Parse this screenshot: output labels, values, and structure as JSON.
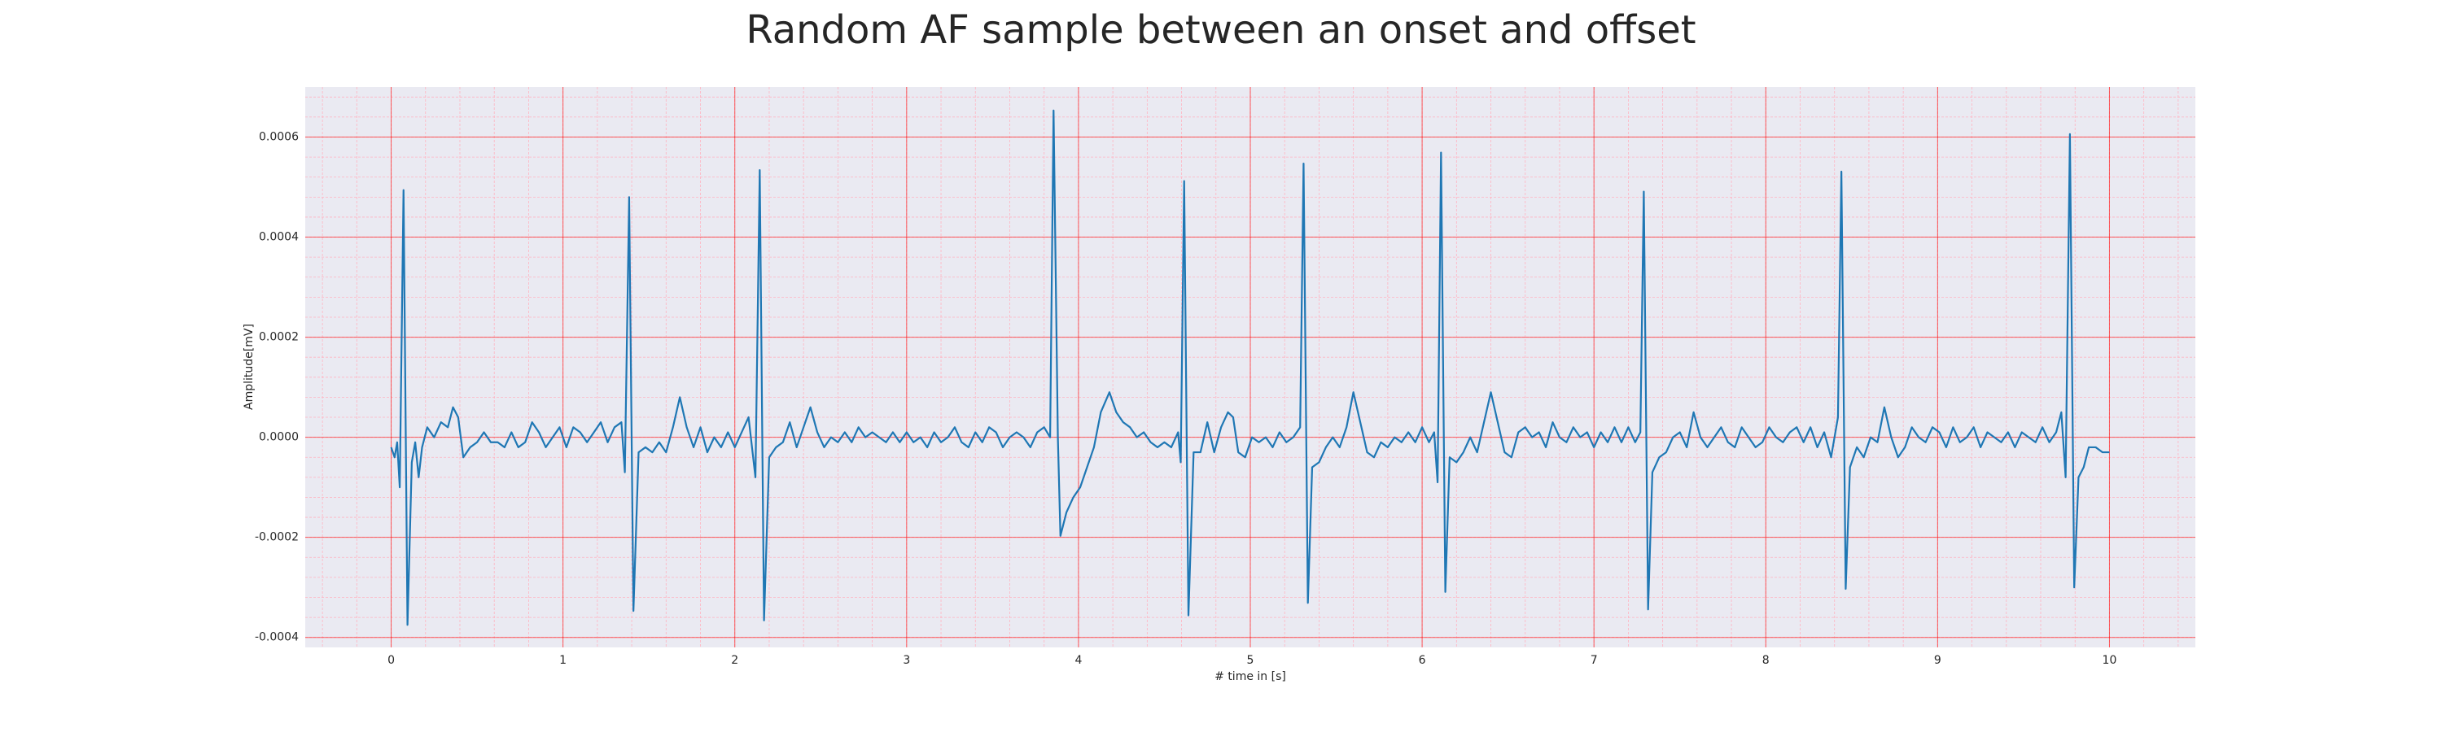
{
  "chart_data": {
    "type": "line",
    "title": "Random AF sample between an onset and offset",
    "x_label": "# time in [s]",
    "y_label": "Amplitude[mV]",
    "background": "#eaeaf2",
    "grid": true,
    "grid_color": "#ff0000",
    "minor_grid": {
      "x_step": 0.2,
      "y_step": 4e-05,
      "color": "#ffb3c1"
    },
    "xlim": [
      -0.5,
      10.5
    ],
    "ylim": [
      -0.00042,
      0.0007
    ],
    "xticks": [
      0,
      1,
      2,
      3,
      4,
      5,
      6,
      7,
      8,
      9,
      10
    ],
    "yticks": [
      {
        "value": -0.0004,
        "label": "-0.0004"
      },
      {
        "value": -0.0002,
        "label": "-0.0002"
      },
      {
        "value": 0,
        "label": "0.0000"
      },
      {
        "value": 0.0002,
        "label": "0.0002"
      },
      {
        "value": 0.0004,
        "label": "0.0004"
      },
      {
        "value": 0.0006,
        "label": "0.0006"
      }
    ],
    "x": [
      0.0,
      0.02,
      0.035,
      0.05,
      0.072,
      0.095,
      0.12,
      0.14,
      0.16,
      0.18,
      0.21,
      0.25,
      0.29,
      0.33,
      0.36,
      0.39,
      0.42,
      0.46,
      0.5,
      0.54,
      0.58,
      0.62,
      0.66,
      0.7,
      0.74,
      0.78,
      0.82,
      0.86,
      0.9,
      0.94,
      0.98,
      1.02,
      1.06,
      1.1,
      1.14,
      1.18,
      1.22,
      1.26,
      1.3,
      1.34,
      1.36,
      1.385,
      1.41,
      1.44,
      1.48,
      1.52,
      1.56,
      1.6,
      1.64,
      1.68,
      1.72,
      1.76,
      1.8,
      1.84,
      1.88,
      1.92,
      1.96,
      2.0,
      2.04,
      2.08,
      2.12,
      2.145,
      2.17,
      2.2,
      2.24,
      2.28,
      2.32,
      2.36,
      2.4,
      2.44,
      2.48,
      2.52,
      2.56,
      2.6,
      2.64,
      2.68,
      2.72,
      2.76,
      2.8,
      2.84,
      2.88,
      2.92,
      2.96,
      3.0,
      3.04,
      3.08,
      3.12,
      3.16,
      3.2,
      3.24,
      3.28,
      3.32,
      3.36,
      3.4,
      3.44,
      3.48,
      3.52,
      3.56,
      3.6,
      3.64,
      3.68,
      3.72,
      3.76,
      3.8,
      3.835,
      3.855,
      3.88,
      3.895,
      3.93,
      3.97,
      4.01,
      4.05,
      4.09,
      4.13,
      4.18,
      4.22,
      4.26,
      4.3,
      4.34,
      4.38,
      4.42,
      4.46,
      4.5,
      4.54,
      4.58,
      4.595,
      4.615,
      4.64,
      4.67,
      4.71,
      4.75,
      4.79,
      4.83,
      4.87,
      4.9,
      4.93,
      4.97,
      5.01,
      5.05,
      5.09,
      5.13,
      5.17,
      5.21,
      5.25,
      5.29,
      5.31,
      5.335,
      5.36,
      5.4,
      5.44,
      5.48,
      5.52,
      5.56,
      5.6,
      5.64,
      5.68,
      5.72,
      5.76,
      5.8,
      5.84,
      5.88,
      5.92,
      5.96,
      6.0,
      6.04,
      6.07,
      6.09,
      6.11,
      6.135,
      6.16,
      6.2,
      6.24,
      6.28,
      6.32,
      6.36,
      6.4,
      6.44,
      6.48,
      6.52,
      6.56,
      6.6,
      6.64,
      6.68,
      6.72,
      6.76,
      6.8,
      6.84,
      6.88,
      6.92,
      6.96,
      7.0,
      7.04,
      7.08,
      7.12,
      7.16,
      7.2,
      7.24,
      7.27,
      7.29,
      7.315,
      7.34,
      7.38,
      7.42,
      7.46,
      7.5,
      7.54,
      7.58,
      7.62,
      7.66,
      7.7,
      7.74,
      7.78,
      7.82,
      7.86,
      7.9,
      7.94,
      7.98,
      8.02,
      8.06,
      8.1,
      8.14,
      8.18,
      8.22,
      8.26,
      8.3,
      8.34,
      8.38,
      8.42,
      8.44,
      8.465,
      8.49,
      8.53,
      8.57,
      8.61,
      8.65,
      8.69,
      8.73,
      8.77,
      8.81,
      8.85,
      8.89,
      8.93,
      8.97,
      9.01,
      9.05,
      9.09,
      9.13,
      9.17,
      9.21,
      9.25,
      9.29,
      9.33,
      9.37,
      9.41,
      9.45,
      9.49,
      9.53,
      9.57,
      9.61,
      9.65,
      9.69,
      9.72,
      9.745,
      9.77,
      9.795,
      9.82,
      9.85,
      9.88,
      9.92,
      9.96,
      10.0
    ],
    "series": [
      {
        "color": "#1f77b4",
        "values": [
          -2e-05,
          -4e-05,
          -1e-05,
          -0.0001,
          0.000494,
          -0.000375,
          -5e-05,
          -1e-05,
          -8e-05,
          -2e-05,
          2e-05,
          0.0,
          3e-05,
          2e-05,
          6e-05,
          4e-05,
          -4e-05,
          -2e-05,
          -1e-05,
          1e-05,
          -1e-05,
          -1e-05,
          -2e-05,
          1e-05,
          -2e-05,
          -1e-05,
          3e-05,
          1e-05,
          -2e-05,
          0.0,
          2e-05,
          -2e-05,
          2e-05,
          1e-05,
          -1e-05,
          1e-05,
          3e-05,
          -1e-05,
          2e-05,
          3e-05,
          -7e-05,
          0.00048,
          -0.000347,
          -3e-05,
          -2e-05,
          -3e-05,
          -1e-05,
          -3e-05,
          2e-05,
          8e-05,
          2e-05,
          -2e-05,
          2e-05,
          -3e-05,
          0.0,
          -2e-05,
          1e-05,
          -2e-05,
          1e-05,
          4e-05,
          -8e-05,
          0.000534,
          -0.000366,
          -4e-05,
          -2e-05,
          -1e-05,
          3e-05,
          -2e-05,
          2e-05,
          6e-05,
          1e-05,
          -2e-05,
          0.0,
          -1e-05,
          1e-05,
          -1e-05,
          2e-05,
          0.0,
          1e-05,
          0.0,
          -1e-05,
          1e-05,
          -1e-05,
          1e-05,
          -1e-05,
          0.0,
          -2e-05,
          1e-05,
          -1e-05,
          0.0,
          2e-05,
          -1e-05,
          -2e-05,
          1e-05,
          -1e-05,
          2e-05,
          1e-05,
          -2e-05,
          0.0,
          1e-05,
          0.0,
          -2e-05,
          1e-05,
          2e-05,
          0.0,
          0.000653,
          0.0,
          -0.000197,
          -0.00015,
          -0.00012,
          -0.0001,
          -6e-05,
          -2e-05,
          5e-05,
          9e-05,
          5e-05,
          3e-05,
          2e-05,
          0.0,
          1e-05,
          -1e-05,
          -2e-05,
          -1e-05,
          -2e-05,
          1e-05,
          -5e-05,
          0.000512,
          -0.000356,
          -3e-05,
          -3e-05,
          3e-05,
          -3e-05,
          2e-05,
          5e-05,
          4e-05,
          -3e-05,
          -4e-05,
          0.0,
          -1e-05,
          0.0,
          -2e-05,
          1e-05,
          -1e-05,
          0.0,
          2e-05,
          0.000547,
          -0.000331,
          -6e-05,
          -5e-05,
          -2e-05,
          0.0,
          -2e-05,
          2e-05,
          9e-05,
          3e-05,
          -3e-05,
          -4e-05,
          -1e-05,
          -2e-05,
          0.0,
          -1e-05,
          1e-05,
          -1e-05,
          2e-05,
          -1e-05,
          1e-05,
          -9e-05,
          0.000569,
          -0.000309,
          -4e-05,
          -5e-05,
          -3e-05,
          0.0,
          -3e-05,
          3e-05,
          9e-05,
          3e-05,
          -3e-05,
          -4e-05,
          1e-05,
          2e-05,
          0.0,
          1e-05,
          -2e-05,
          3e-05,
          0.0,
          -1e-05,
          2e-05,
          0.0,
          1e-05,
          -2e-05,
          1e-05,
          -1e-05,
          2e-05,
          -1e-05,
          2e-05,
          -1e-05,
          1e-05,
          0.000491,
          -0.000344,
          -7e-05,
          -4e-05,
          -3e-05,
          0.0,
          1e-05,
          -2e-05,
          5e-05,
          0.0,
          -2e-05,
          0.0,
          2e-05,
          -1e-05,
          -2e-05,
          2e-05,
          0.0,
          -2e-05,
          -1e-05,
          2e-05,
          0.0,
          -1e-05,
          1e-05,
          2e-05,
          -1e-05,
          2e-05,
          -2e-05,
          1e-05,
          -4e-05,
          4e-05,
          0.000531,
          -0.000303,
          -6e-05,
          -2e-05,
          -4e-05,
          0.0,
          -1e-05,
          6e-05,
          0.0,
          -4e-05,
          -2e-05,
          2e-05,
          0.0,
          -1e-05,
          2e-05,
          1e-05,
          -2e-05,
          2e-05,
          -1e-05,
          0.0,
          2e-05,
          -2e-05,
          1e-05,
          0.0,
          -1e-05,
          1e-05,
          -2e-05,
          1e-05,
          0.0,
          -1e-05,
          2e-05,
          -1e-05,
          1e-05,
          5e-05,
          -8e-05,
          0.000606,
          -0.0003,
          -8e-05,
          -6e-05,
          -2e-05,
          -2e-05,
          -3e-05,
          -3e-05
        ]
      }
    ]
  }
}
